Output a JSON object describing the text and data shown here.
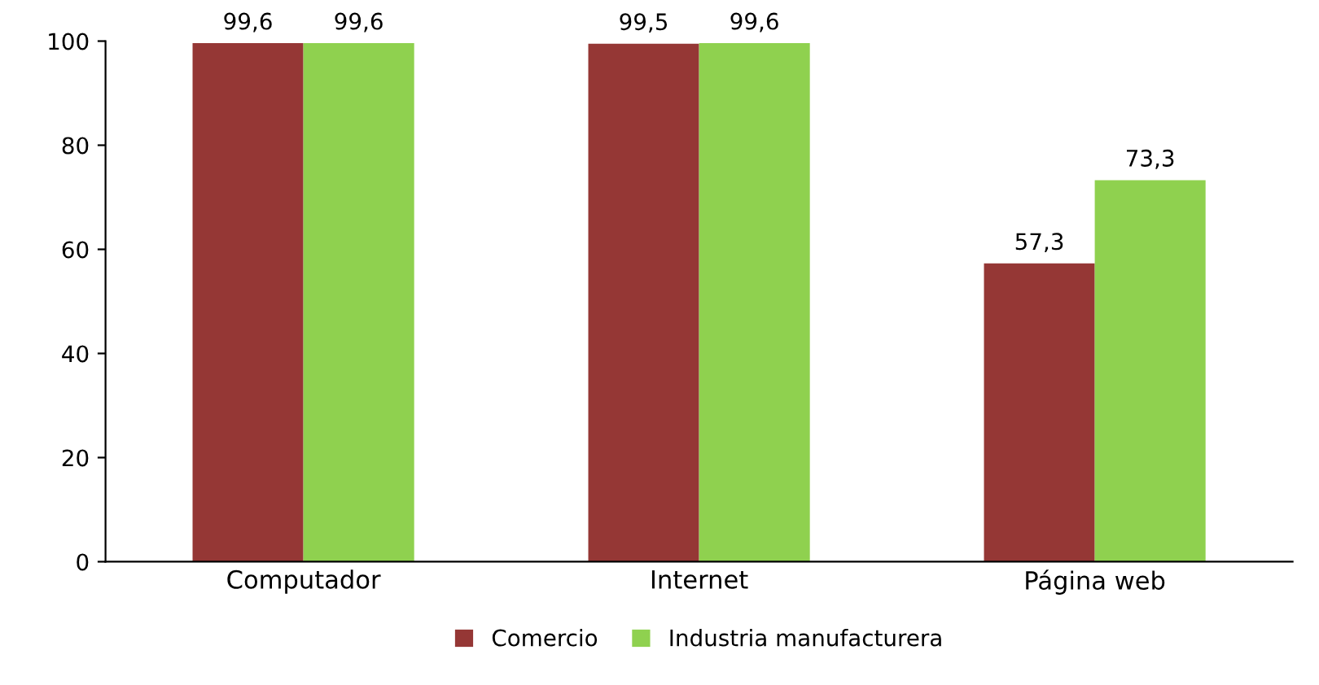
{
  "chart_data": {
    "type": "bar",
    "categories": [
      "Computador",
      "Internet",
      "Página web"
    ],
    "series": [
      {
        "name": "Comercio",
        "color": "#953735",
        "values": [
          99.6,
          99.5,
          57.3
        ],
        "value_labels": [
          "99,6",
          "99,5",
          "57,3"
        ]
      },
      {
        "name": "Industria manufacturera",
        "color": "#8fd14f",
        "values": [
          99.6,
          99.6,
          73.3
        ],
        "value_labels": [
          "99,6",
          "99,6",
          "73,3"
        ]
      }
    ],
    "ylim": [
      0,
      100
    ],
    "yticks": [
      0,
      20,
      40,
      60,
      80,
      100
    ],
    "grid": false,
    "legend": "bottom"
  }
}
